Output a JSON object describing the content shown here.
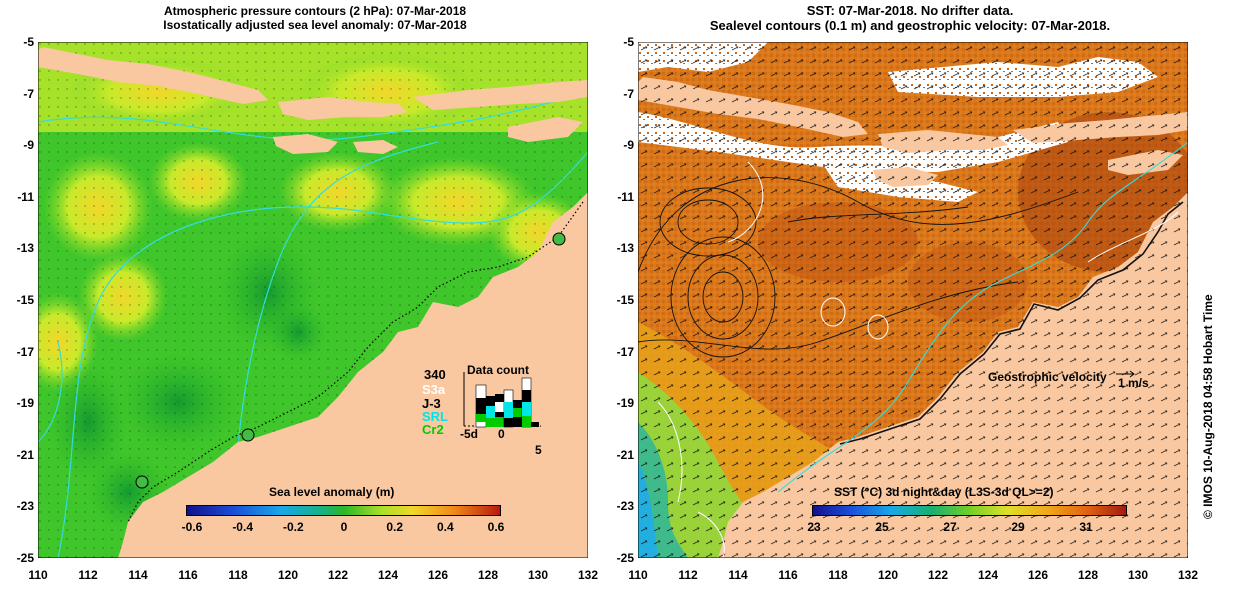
{
  "left_panel": {
    "title_line1": "Atmospheric pressure contours (2 hPa): 07-Mar-2018",
    "title_line2": "Isostatically adjusted sea level anomaly: 07-Mar-2018",
    "colorbar": {
      "title": "Sea level anomaly (m)",
      "ticks": [
        "-0.6",
        "-0.4",
        "-0.2",
        "0",
        "0.2",
        "0.4",
        "0.6"
      ]
    },
    "data_count": {
      "title": "Data count",
      "max_label": "340",
      "missions": [
        {
          "label": "S3a",
          "color": "#ffffff"
        },
        {
          "label": "J-3",
          "color": "#000000"
        },
        {
          "label": "SRL",
          "color": "#00e5e5"
        },
        {
          "label": "Cr2",
          "color": "#00cc00"
        }
      ],
      "axis_ticks": [
        "-5d",
        "0",
        "5"
      ]
    }
  },
  "right_panel": {
    "title_line1": "SST: 07-Mar-2018. No drifter data.",
    "title_line2": "Sealevel contours (0.1 m) and geostrophic velocity: 07-Mar-2018.",
    "velocity_label": "Geostrophic velocity",
    "velocity_scale": "1 m/s",
    "colorbar": {
      "title": "SST (°C) 3d night&day (L3S-3d QL>=2)",
      "ticks": [
        "23",
        "25",
        "27",
        "29",
        "31"
      ]
    }
  },
  "axes": {
    "lat_ticks": [
      "-5",
      "-7",
      "-9",
      "-11",
      "-13",
      "-15",
      "-17",
      "-19",
      "-21",
      "-23",
      "-25"
    ],
    "lon_ticks": [
      "110",
      "112",
      "114",
      "116",
      "118",
      "120",
      "122",
      "124",
      "126",
      "128",
      "130",
      "132"
    ]
  },
  "credit": "© IMOS 10-Aug-2018 04:58 Hobart Time",
  "colors": {
    "land": "#f9c8a0",
    "sla_green": "#33cc22",
    "sla_yellow": "#ccee22",
    "sst_orange": "#dd7711",
    "sst_dark": "#b04a10"
  }
}
